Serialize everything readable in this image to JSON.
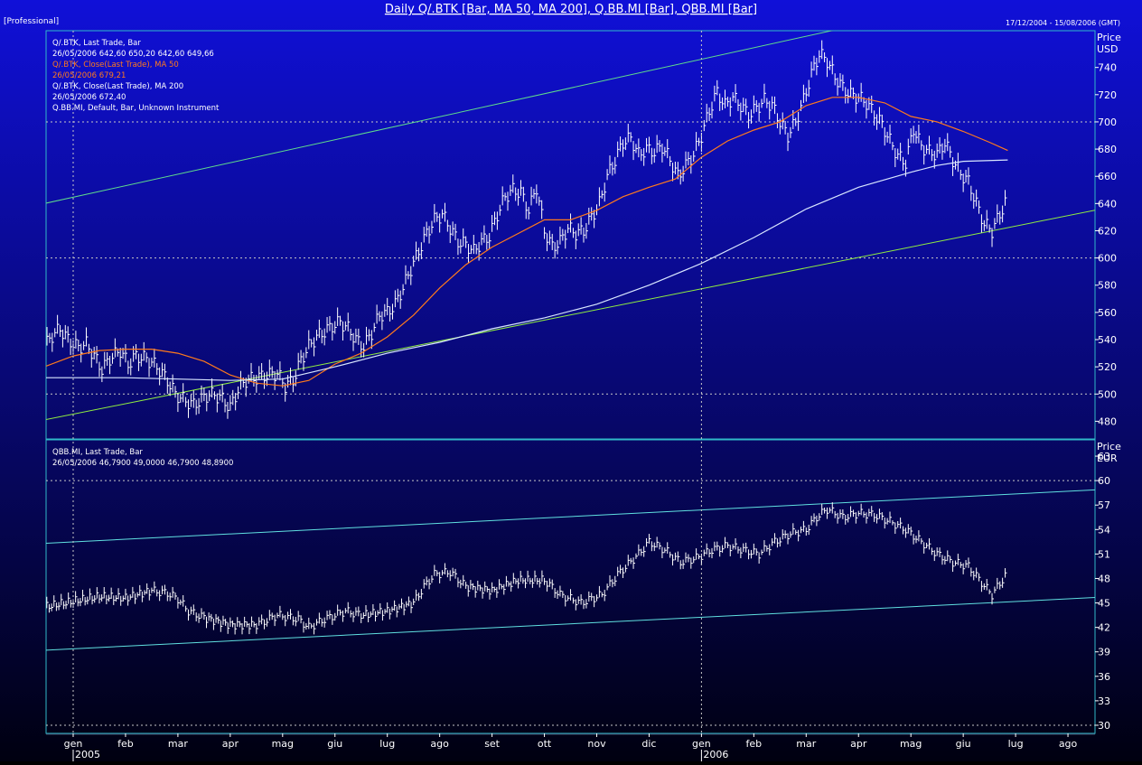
{
  "header": {
    "title": "Daily Q/.BTK [Bar, MA 50, MA 200], Q.BB.MI [Bar], QBB.MI [Bar]",
    "badge": "[Professional]",
    "date_range": "17/12/2004 - 15/08/2006 (GMT)"
  },
  "colors": {
    "background_top": "#1010d8",
    "background_bottom": "#000010",
    "bars": "#ffffff",
    "ma50": "#ff7a1c",
    "ma200": "#d8e6ff",
    "trendline_top": "#5fdc8c",
    "trendline_bottom": "#90ee40",
    "trendline_lower_panel": "#60e0e0",
    "grid": "#c8c8c8",
    "frame": "#30b8c8"
  },
  "x_axis": {
    "months": [
      "gen",
      "feb",
      "mar",
      "apr",
      "mag",
      "giu",
      "lug",
      "ago",
      "set",
      "ott",
      "nov",
      "dic",
      "gen",
      "feb",
      "mar",
      "apr",
      "mag",
      "giu",
      "lug",
      "ago"
    ],
    "years": [
      {
        "label": "2005"
      },
      {
        "label": "2006"
      }
    ]
  },
  "upper_panel": {
    "axis_title": [
      "Price",
      "USD"
    ],
    "legend": [
      {
        "text": "Q/.BTK, Last Trade, Bar",
        "color": "#ffffff"
      },
      {
        "text": "26/05/2006 642,60 650,20 642,60 649,66",
        "color": "#ffffff"
      },
      {
        "text": "Q/.BTK, Close(Last Trade), MA 50",
        "color": "#ff7a1c"
      },
      {
        "text": "26/05/2006 679,21",
        "color": "#ff7a1c"
      },
      {
        "text": "Q/.BTK, Close(Last Trade), MA 200",
        "color": "#ffffff"
      },
      {
        "text": "26/05/2006 672,40",
        "color": "#ffffff"
      },
      {
        "text": "Q.BB.MI, Default, Bar, Unknown Instrument",
        "color": "#ffffff"
      }
    ]
  },
  "lower_panel": {
    "axis_title": [
      "Price",
      "EUR"
    ],
    "legend": [
      {
        "text": "QBB.MI, Last Trade, Bar",
        "color": "#ffffff"
      },
      {
        "text": "26/05/2006 46,7900 49,0000 46,7900 48,8900",
        "color": "#ffffff"
      }
    ]
  },
  "chart_data": [
    {
      "type": "line",
      "name_printed": "Q/.BTK",
      "x_unit": "month index (0 = Jan 2005)",
      "ylim": [
        467,
        768
      ],
      "y_ticks": [
        480,
        500,
        520,
        540,
        560,
        580,
        600,
        620,
        640,
        660,
        680,
        700,
        720,
        740
      ],
      "dashed_gridlines_y": [
        500,
        600,
        700
      ],
      "dashed_gridlines_x": [
        0,
        12
      ],
      "series": [
        {
          "name": "Q/.BTK, Last Trade, Bar",
          "kind": "bars",
          "points": [
            [
              -0.55,
              535
            ],
            [
              -0.4,
              543
            ],
            [
              -0.25,
              548
            ],
            [
              -0.1,
              540
            ],
            [
              0.1,
              534
            ],
            [
              0.25,
              537
            ],
            [
              0.4,
              528
            ],
            [
              0.55,
              518
            ],
            [
              0.7,
              526
            ],
            [
              0.9,
              532
            ],
            [
              1.05,
              522
            ],
            [
              1.2,
              528
            ],
            [
              1.4,
              526
            ],
            [
              1.6,
              520
            ],
            [
              1.8,
              510
            ],
            [
              1.95,
              500
            ],
            [
              2.1,
              496
            ],
            [
              2.3,
              492
            ],
            [
              2.45,
              496
            ],
            [
              2.6,
              500
            ],
            [
              2.8,
              498
            ],
            [
              3.0,
              490
            ],
            [
              3.15,
              503
            ],
            [
              3.3,
              510
            ],
            [
              3.5,
              512
            ],
            [
              3.7,
              514
            ],
            [
              3.9,
              515
            ],
            [
              4.05,
              506
            ],
            [
              4.2,
              510
            ],
            [
              4.35,
              525
            ],
            [
              4.5,
              535
            ],
            [
              4.65,
              542
            ],
            [
              4.8,
              546
            ],
            [
              4.95,
              550
            ],
            [
              5.1,
              553
            ],
            [
              5.25,
              548
            ],
            [
              5.4,
              540
            ],
            [
              5.55,
              535
            ],
            [
              5.7,
              545
            ],
            [
              5.85,
              558
            ],
            [
              6.0,
              560
            ],
            [
              6.15,
              566
            ],
            [
              6.3,
              578
            ],
            [
              6.45,
              592
            ],
            [
              6.6,
              605
            ],
            [
              6.75,
              618
            ],
            [
              6.9,
              628
            ],
            [
              7.05,
              632
            ],
            [
              7.2,
              622
            ],
            [
              7.35,
              612
            ],
            [
              7.5,
              610
            ],
            [
              7.65,
              605
            ],
            [
              7.8,
              612
            ],
            [
              7.95,
              616
            ],
            [
              8.1,
              632
            ],
            [
              8.25,
              645
            ],
            [
              8.4,
              650
            ],
            [
              8.55,
              648
            ],
            [
              8.7,
              635
            ],
            [
              8.85,
              652
            ],
            [
              9.0,
              620
            ],
            [
              9.15,
              608
            ],
            [
              9.3,
              612
            ],
            [
              9.45,
              622
            ],
            [
              9.6,
              618
            ],
            [
              9.75,
              620
            ],
            [
              9.9,
              630
            ],
            [
              10.05,
              640
            ],
            [
              10.2,
              660
            ],
            [
              10.35,
              672
            ],
            [
              10.5,
              685
            ],
            [
              10.65,
              688
            ],
            [
              10.8,
              676
            ],
            [
              10.95,
              680
            ],
            [
              11.1,
              678
            ],
            [
              11.25,
              682
            ],
            [
              11.4,
              672
            ],
            [
              11.55,
              660
            ],
            [
              11.7,
              668
            ],
            [
              11.85,
              676
            ],
            [
              12.0,
              690
            ],
            [
              12.15,
              708
            ],
            [
              12.3,
              722
            ],
            [
              12.45,
              712
            ],
            [
              12.6,
              718
            ],
            [
              12.75,
              712
            ],
            [
              12.9,
              705
            ],
            [
              13.05,
              710
            ],
            [
              13.2,
              716
            ],
            [
              13.35,
              712
            ],
            [
              13.5,
              700
            ],
            [
              13.65,
              690
            ],
            [
              13.8,
              700
            ],
            [
              13.95,
              716
            ],
            [
              14.1,
              735
            ],
            [
              14.25,
              750
            ],
            [
              14.4,
              745
            ],
            [
              14.55,
              733
            ],
            [
              14.7,
              725
            ],
            [
              14.85,
              720
            ],
            [
              15.0,
              718
            ],
            [
              15.15,
              714
            ],
            [
              15.3,
              706
            ],
            [
              15.45,
              698
            ],
            [
              15.6,
              686
            ],
            [
              15.75,
              675
            ],
            [
              15.9,
              670
            ],
            [
              16.05,
              695
            ],
            [
              16.2,
              682
            ],
            [
              16.35,
              678
            ],
            [
              16.5,
              676
            ],
            [
              16.65,
              685
            ],
            [
              16.8,
              672
            ],
            [
              16.95,
              662
            ],
            [
              17.1,
              656
            ],
            [
              17.25,
              640
            ],
            [
              17.4,
              625
            ],
            [
              17.55,
              620
            ],
            [
              17.7,
              632
            ],
            [
              17.85,
              645
            ]
          ]
        },
        {
          "name": "Q/.BTK, Close(Last Trade), MA 50",
          "kind": "line",
          "points": [
            [
              -0.55,
              520
            ],
            [
              0,
              528
            ],
            [
              0.5,
              532
            ],
            [
              1.0,
              533
            ],
            [
              1.5,
              533
            ],
            [
              2.0,
              530
            ],
            [
              2.5,
              524
            ],
            [
              3.0,
              514
            ],
            [
              3.5,
              508
            ],
            [
              4.0,
              506
            ],
            [
              4.5,
              510
            ],
            [
              5.0,
              522
            ],
            [
              5.5,
              530
            ],
            [
              6.0,
              542
            ],
            [
              6.5,
              558
            ],
            [
              7.0,
              578
            ],
            [
              7.5,
              595
            ],
            [
              8.0,
              608
            ],
            [
              8.5,
              618
            ],
            [
              9.0,
              628
            ],
            [
              9.5,
              628
            ],
            [
              10.0,
              635
            ],
            [
              10.5,
              645
            ],
            [
              11.0,
              652
            ],
            [
              11.5,
              658
            ],
            [
              12.0,
              674
            ],
            [
              12.5,
              686
            ],
            [
              13.0,
              694
            ],
            [
              13.5,
              700
            ],
            [
              14.0,
              712
            ],
            [
              14.5,
              718
            ],
            [
              15.0,
              718
            ],
            [
              15.5,
              714
            ],
            [
              16.0,
              704
            ],
            [
              16.5,
              700
            ],
            [
              17.0,
              693
            ],
            [
              17.5,
              685
            ],
            [
              17.85,
              679
            ]
          ]
        },
        {
          "name": "Q/.BTK, Close(Last Trade), MA 200",
          "kind": "line",
          "points": [
            [
              -0.55,
              512
            ],
            [
              0,
              512
            ],
            [
              1,
              512
            ],
            [
              2,
              511
            ],
            [
              3,
              510
            ],
            [
              4,
              511
            ],
            [
              5,
              520
            ],
            [
              6,
              530
            ],
            [
              7,
              538
            ],
            [
              8,
              548
            ],
            [
              9,
              556
            ],
            [
              10,
              566
            ],
            [
              11,
              580
            ],
            [
              12,
              596
            ],
            [
              13,
              615
            ],
            [
              14,
              636
            ],
            [
              15,
              652
            ],
            [
              16,
              663
            ],
            [
              16.5,
              668
            ],
            [
              17,
              671
            ],
            [
              17.85,
              672
            ]
          ]
        }
      ],
      "trendlines": [
        {
          "points": [
            [
              -0.55,
              640
            ],
            [
              14.6,
              768
            ]
          ]
        },
        {
          "points": [
            [
              -0.55,
              481
            ],
            [
              20.55,
              643
            ]
          ]
        }
      ]
    },
    {
      "type": "line",
      "name_printed": "QBB.MI",
      "x_unit": "month index (0 = Jan 2005)",
      "ylim": [
        29,
        65
      ],
      "y_ticks": [
        30,
        33,
        36,
        39,
        42,
        45,
        48,
        51,
        54,
        57,
        60,
        63
      ],
      "dashed_gridlines_y": [
        30,
        60
      ],
      "series": [
        {
          "name": "QBB.MI, Last Trade, Bar",
          "kind": "bars",
          "points": [
            [
              -0.55,
              44.5
            ],
            [
              0,
              45.2
            ],
            [
              0.5,
              45.8
            ],
            [
              1.0,
              45.6
            ],
            [
              1.5,
              46.5
            ],
            [
              1.8,
              46.2
            ],
            [
              2.0,
              45.5
            ],
            [
              2.2,
              44.0
            ],
            [
              2.5,
              43.2
            ],
            [
              3.0,
              42.3
            ],
            [
              3.5,
              42.3
            ],
            [
              3.9,
              43.5
            ],
            [
              4.3,
              43.0
            ],
            [
              4.5,
              42.0
            ],
            [
              4.8,
              43.0
            ],
            [
              5.2,
              44.0
            ],
            [
              5.5,
              43.5
            ],
            [
              6.0,
              44.0
            ],
            [
              6.5,
              45.0
            ],
            [
              6.7,
              47.0
            ],
            [
              6.9,
              48.5
            ],
            [
              7.2,
              48.8
            ],
            [
              7.5,
              47.0
            ],
            [
              8.0,
              46.5
            ],
            [
              8.5,
              47.8
            ],
            [
              9.0,
              47.8
            ],
            [
              9.3,
              46.0
            ],
            [
              9.7,
              45.0
            ],
            [
              10.1,
              46.0
            ],
            [
              10.4,
              48.5
            ],
            [
              10.8,
              51.0
            ],
            [
              11.0,
              52.5
            ],
            [
              11.3,
              51.5
            ],
            [
              11.6,
              50.0
            ],
            [
              11.9,
              50.5
            ],
            [
              12.2,
              51.5
            ],
            [
              12.5,
              52.0
            ],
            [
              12.8,
              51.5
            ],
            [
              13.1,
              51.0
            ],
            [
              13.4,
              52.5
            ],
            [
              13.7,
              53.5
            ],
            [
              14.0,
              54.0
            ],
            [
              14.2,
              55.5
            ],
            [
              14.4,
              56.5
            ],
            [
              14.7,
              55.5
            ],
            [
              15.0,
              56.0
            ],
            [
              15.3,
              55.8
            ],
            [
              15.6,
              55.0
            ],
            [
              15.9,
              54.0
            ],
            [
              16.2,
              52.5
            ],
            [
              16.5,
              51.0
            ],
            [
              16.8,
              50.0
            ],
            [
              17.1,
              49.5
            ],
            [
              17.35,
              47.5
            ],
            [
              17.55,
              46.0
            ],
            [
              17.85,
              48.8
            ]
          ]
        }
      ],
      "trendlines": [
        {
          "points": [
            [
              -0.55,
              52.3
            ],
            [
              20.55,
              59.2
            ]
          ]
        },
        {
          "points": [
            [
              -0.55,
              39.2
            ],
            [
              20.55,
              46.0
            ]
          ]
        }
      ]
    }
  ]
}
